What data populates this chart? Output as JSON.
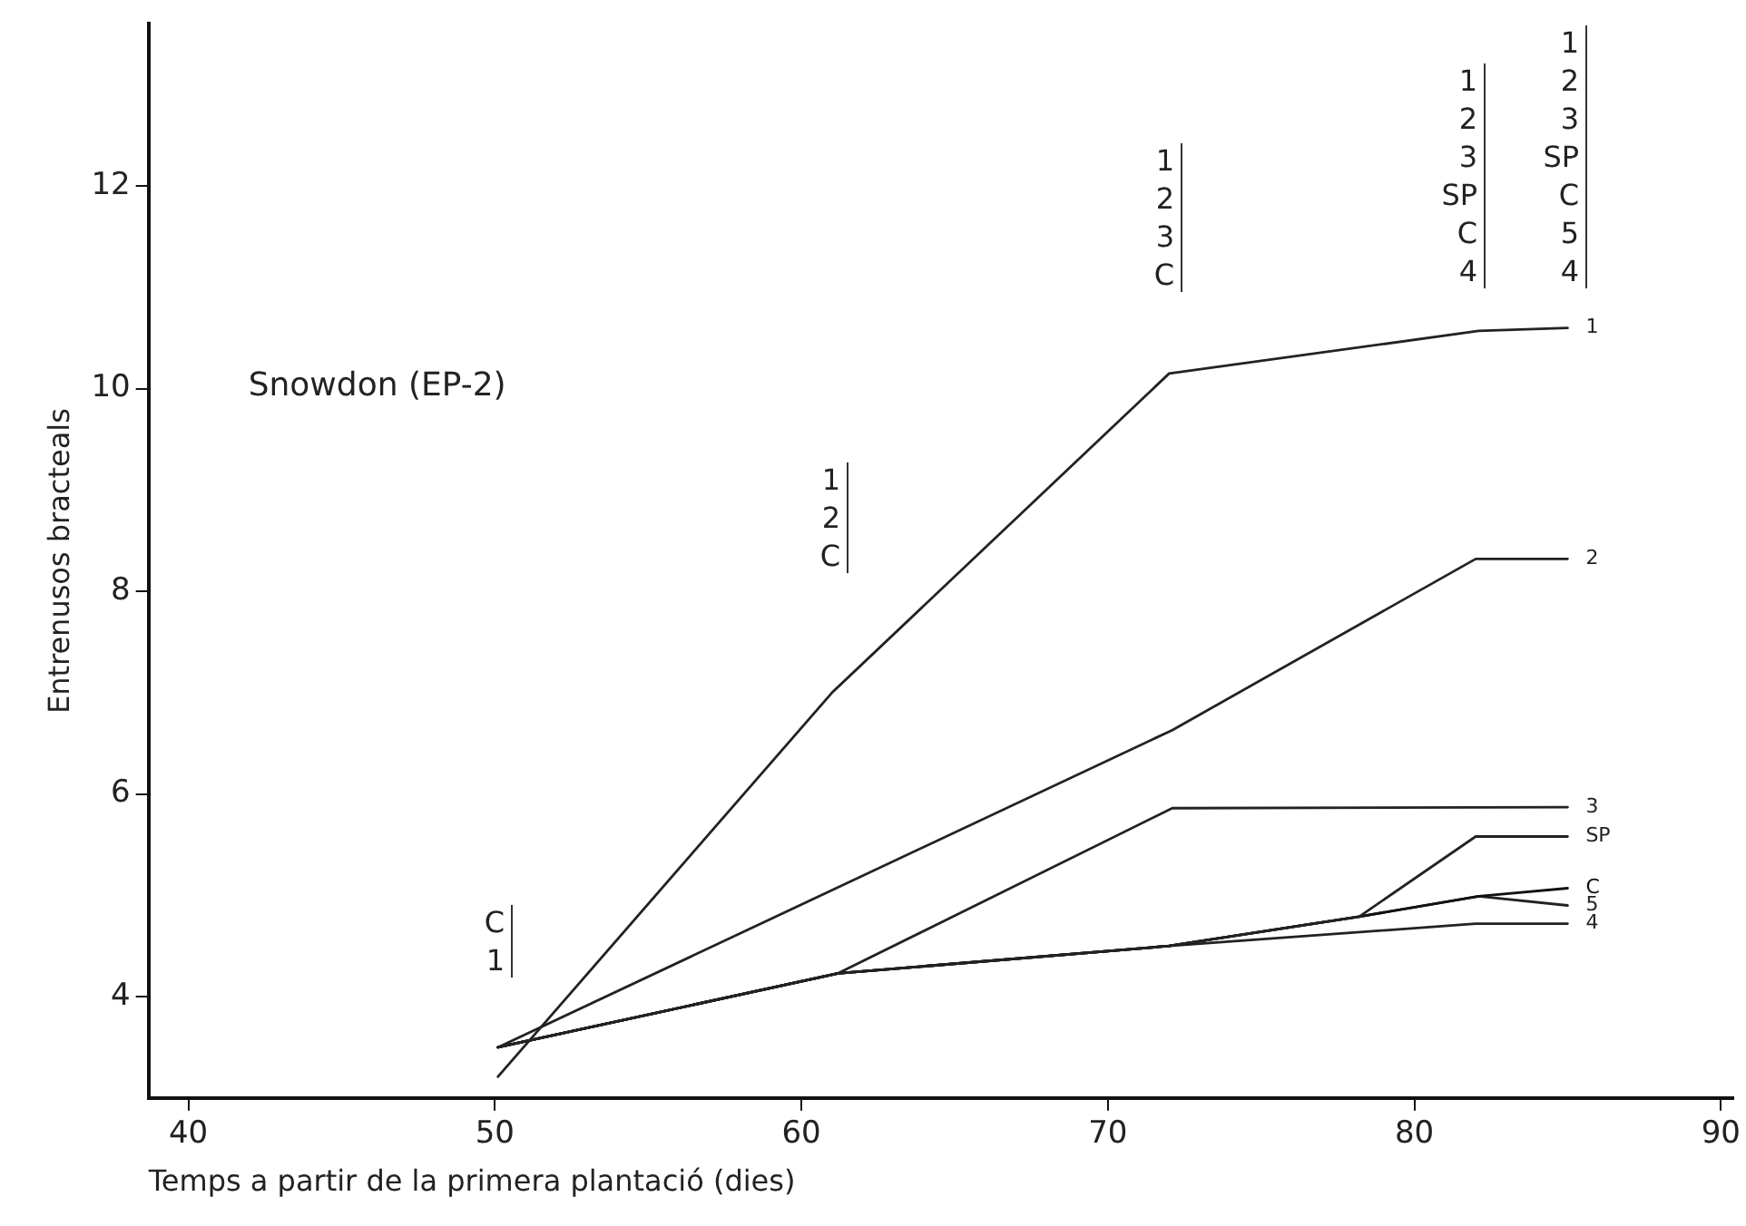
{
  "chart_data": {
    "type": "line",
    "title": "Snowdon (EP-2)",
    "xlabel": "Temps a partir de la primera plantació (dies)",
    "ylabel": "Entrenusos bracteals",
    "xlim": [
      38.7,
      90.4
    ],
    "xticks": [
      40,
      50,
      60,
      70,
      80,
      90
    ],
    "ylim": [
      3,
      13.6
    ],
    "yticks": [
      4,
      6,
      8,
      10,
      12
    ],
    "grid": false,
    "legend": false,
    "marker": "none",
    "line_style": "solid",
    "series": [
      {
        "name": "1",
        "color": "#222222",
        "x": [
          50.1,
          61,
          72,
          82.1,
          85
        ],
        "values": [
          3.21,
          7.0,
          10.15,
          10.57,
          10.6
        ]
      },
      {
        "name": "2",
        "color": "#222222",
        "x": [
          50.1,
          72.1,
          82,
          85
        ],
        "values": [
          3.5,
          6.63,
          8.32,
          8.32
        ]
      },
      {
        "name": "3",
        "color": "#222222",
        "x": [
          50.1,
          61.2,
          72.1,
          85
        ],
        "values": [
          3.5,
          4.23,
          5.86,
          5.87
        ]
      },
      {
        "name": "SP",
        "color": "#222222",
        "x": [
          50.1,
          61.2,
          72,
          78.2,
          82,
          85
        ],
        "values": [
          3.5,
          4.23,
          4.5,
          4.79,
          5.58,
          5.58
        ]
      },
      {
        "name": "C",
        "color": "#111111",
        "x": [
          50.1,
          61.2,
          72,
          78.2,
          82.1,
          85
        ],
        "values": [
          3.5,
          4.23,
          4.5,
          4.79,
          4.99,
          5.07
        ]
      },
      {
        "name": "5",
        "color": "#222222",
        "x": [
          50.1,
          61.2,
          72,
          78.2,
          82.1,
          85
        ],
        "values": [
          3.5,
          4.23,
          4.5,
          4.79,
          4.99,
          4.9
        ]
      },
      {
        "name": "4",
        "color": "#222222",
        "x": [
          50.1,
          61.2,
          72,
          82,
          85
        ],
        "values": [
          3.5,
          4.23,
          4.5,
          4.72,
          4.72
        ]
      }
    ],
    "annotations": [
      "C\n1",
      "1\n2\nC",
      "1\n2\n3\nC",
      "1\n2\n3\nSP\nC\n4",
      "1\n2\n3\nSP\nC\n5\n4"
    ]
  }
}
